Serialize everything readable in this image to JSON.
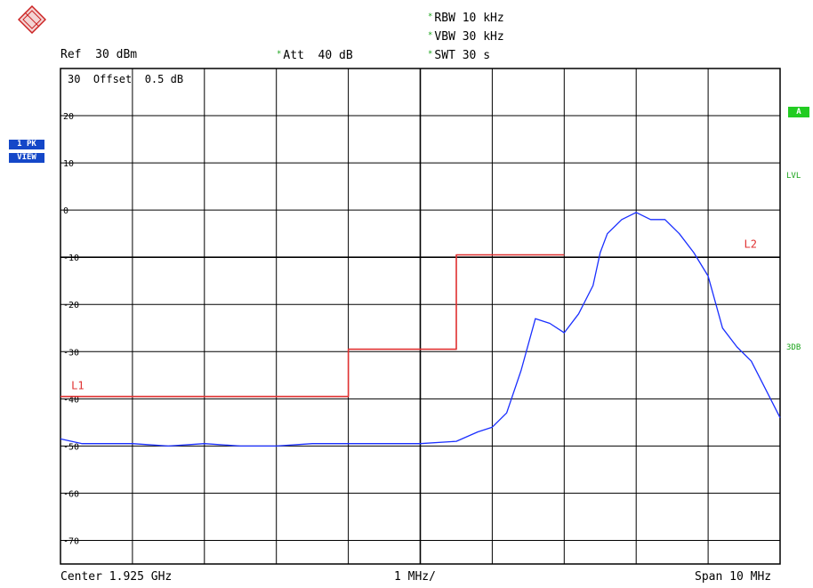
{
  "header": {
    "rbw": "RBW 10 kHz",
    "vbw": "VBW 30 kHz",
    "swt": "SWT 30 s",
    "ref": "Ref  30 dBm",
    "att": "Att  40 dB",
    "offset": "30  Offset  0.5 dB"
  },
  "left_badges": {
    "trace": "1 PK",
    "mode": "VIEW"
  },
  "right_labels": {
    "a": "A",
    "lvl": "LVL",
    "db3": "3DB"
  },
  "footer": {
    "center": "Center 1.925 GHz",
    "div": "1 MHz/",
    "span": "Span 10 MHz"
  },
  "colors": {
    "trace": "#1a2fff",
    "limit": "#e03030",
    "grid": "#000000",
    "status": "#19a319",
    "badge": "#1447c8"
  },
  "chart_data": {
    "type": "line",
    "xlim": [
      0,
      10
    ],
    "ylim": [
      -75,
      30
    ],
    "y_ticks": [
      20,
      10,
      0,
      -10,
      -20,
      -30,
      -40,
      -50,
      -60,
      -70
    ],
    "y_tick_labels": [
      "20",
      "10",
      "0",
      "-10",
      "-20",
      "-30",
      "-40",
      "-50",
      "-60",
      "-70"
    ],
    "x_divisions": 10,
    "grid": true,
    "series": [
      {
        "name": "",
        "kind": "trace",
        "x": [
          0,
          0.3,
          0.6,
          1,
          1.5,
          2,
          2.5,
          3,
          3.5,
          4,
          4.5,
          5,
          5.5,
          5.8,
          6.0,
          6.2,
          6.4,
          6.6,
          6.8,
          7.0,
          7.2,
          7.4,
          7.5,
          7.6,
          7.8,
          8.0,
          8.2,
          8.4,
          8.6,
          8.8,
          9.0,
          9.2,
          9.4,
          9.6,
          9.8,
          10
        ],
        "y": [
          -48.5,
          -49.5,
          -49.5,
          -49.5,
          -50,
          -49.5,
          -50,
          -50,
          -49.5,
          -49.5,
          -49.5,
          -49.5,
          -49,
          -47,
          -46,
          -43,
          -34,
          -23,
          -24,
          -26,
          -22,
          -16,
          -9,
          -5,
          -2,
          -0.5,
          -2,
          -2,
          -5,
          -9,
          -14,
          -25,
          -29,
          -32,
          -38,
          -44
        ]
      },
      {
        "name": "L1",
        "kind": "limit",
        "x": [
          0,
          4.0,
          4.0,
          5.5,
          5.5,
          7.0
        ],
        "y": [
          -39.5,
          -39.5,
          -29.5,
          -29.5,
          -9.5,
          -9.5
        ]
      }
    ],
    "annotations": [
      {
        "text": "L1",
        "x": 0.15,
        "y": -38
      },
      {
        "text": "L2",
        "x": 9.5,
        "y": -8
      }
    ]
  }
}
